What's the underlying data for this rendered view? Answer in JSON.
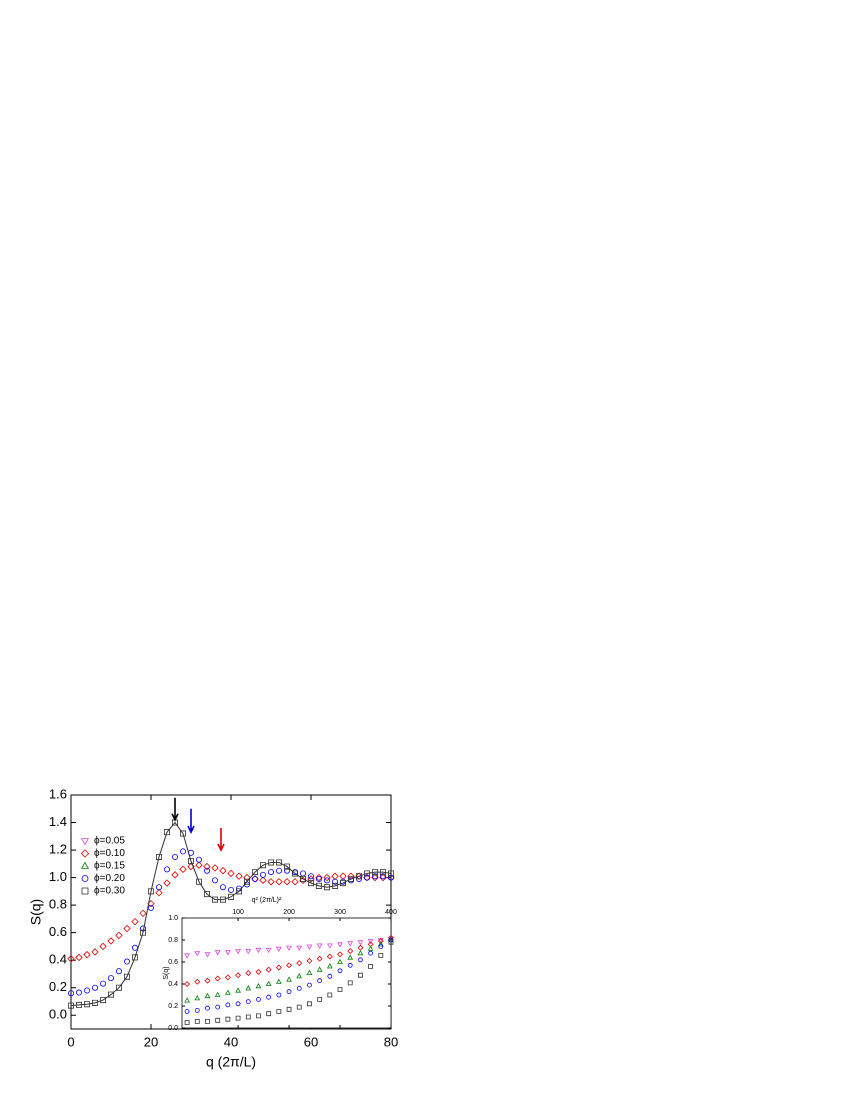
{
  "chart_data": [
    {
      "type": "scatter",
      "xlabel": "q (2π/L)",
      "ylabel": "S(q)",
      "xlim": [
        0,
        80
      ],
      "ylim": [
        -0.1,
        1.6
      ],
      "xticks": [
        0,
        20,
        40,
        60,
        80
      ],
      "yticks": [
        {
          "value": 0,
          "label": "0.0"
        },
        0.2,
        0.4,
        0.6,
        0.8,
        {
          "value": 1,
          "label": "1.0"
        },
        1.2,
        1.4,
        1.6
      ],
      "legend": "upper left",
      "x": [
        0,
        2,
        4,
        6,
        8,
        10,
        12,
        14,
        16,
        18,
        20,
        22,
        24,
        26,
        28,
        30,
        32,
        34,
        36,
        38,
        40,
        42,
        44,
        46,
        48,
        50,
        52,
        54,
        56,
        58,
        60,
        62,
        64,
        66,
        68,
        70,
        72,
        74,
        76,
        78,
        80
      ],
      "series": [
        {
          "color": "#e00000",
          "marker": "diamond",
          "line": false,
          "values": [
            0.41,
            0.42,
            0.44,
            0.46,
            0.5,
            0.54,
            0.58,
            0.63,
            0.68,
            0.74,
            0.81,
            0.89,
            0.96,
            1.02,
            1.06,
            1.08,
            1.09,
            1.08,
            1.07,
            1.05,
            1.03,
            1.01,
            1.0,
            0.99,
            0.98,
            0.97,
            0.97,
            0.97,
            0.97,
            0.98,
            0.99,
            1.0,
            1.0,
            1.01,
            1.01,
            1.01,
            1.01,
            1.0,
            1.0,
            1.0,
            1.0
          ]
        },
        {
          "color": "#0000ff",
          "marker": "circle",
          "line": false,
          "values": [
            0.16,
            0.165,
            0.18,
            0.2,
            0.23,
            0.27,
            0.32,
            0.39,
            0.49,
            0.63,
            0.78,
            0.93,
            1.06,
            1.15,
            1.19,
            1.18,
            1.13,
            1.05,
            0.98,
            0.93,
            0.91,
            0.92,
            0.95,
            0.99,
            1.02,
            1.04,
            1.05,
            1.05,
            1.04,
            1.03,
            1.01,
            0.99,
            0.98,
            0.97,
            0.97,
            0.98,
            0.99,
            1.0,
            1.01,
            1.01,
            1.0
          ]
        },
        {
          "color": "#333333",
          "marker": "square",
          "line": true,
          "values": [
            0.07,
            0.075,
            0.08,
            0.09,
            0.11,
            0.15,
            0.2,
            0.28,
            0.42,
            0.6,
            0.9,
            1.15,
            1.33,
            1.4,
            1.32,
            1.12,
            0.97,
            0.88,
            0.84,
            0.84,
            0.86,
            0.9,
            0.97,
            1.04,
            1.09,
            1.11,
            1.11,
            1.08,
            1.03,
            0.99,
            0.96,
            0.94,
            0.93,
            0.94,
            0.96,
            0.99,
            1.01,
            1.03,
            1.04,
            1.04,
            1.03
          ]
        }
      ],
      "arrows": [
        {
          "x": 26,
          "y_from": 1.58,
          "y_to": 1.42,
          "color": "#000000"
        },
        {
          "x": 30,
          "y_from": 1.5,
          "y_to": 1.33,
          "color": "#0000cc"
        },
        {
          "x": 37.5,
          "y_from": 1.36,
          "y_to": 1.2,
          "color": "#dd0000"
        }
      ]
    },
    {
      "type": "scatter",
      "xlabel": "q² (2π/L)²",
      "ylabel": "S(q)",
      "xlim": [
        -10,
        400
      ],
      "ylim": [
        0,
        1
      ],
      "xticks": [
        100,
        200,
        300,
        400
      ],
      "yticks": [
        {
          "value": 0,
          "label": "0.0"
        },
        0.2,
        0.4,
        0.6,
        0.8,
        {
          "value": 1,
          "label": "1.0"
        }
      ],
      "x": [
        0,
        20,
        40,
        60,
        80,
        100,
        120,
        140,
        160,
        180,
        200,
        220,
        240,
        260,
        280,
        300,
        320,
        340,
        360,
        380,
        400
      ],
      "series": [
        {
          "name": "ϕ=0.05",
          "color": "#e040e0",
          "marker": "down",
          "values": [
            0.66,
            0.68,
            0.67,
            0.69,
            0.69,
            0.7,
            0.7,
            0.71,
            0.71,
            0.72,
            0.73,
            0.73,
            0.74,
            0.75,
            0.75,
            0.76,
            0.77,
            0.78,
            0.79,
            0.8,
            0.81
          ]
        },
        {
          "name": "ϕ=0.10",
          "color": "#e00000",
          "marker": "diamond",
          "values": [
            0.4,
            0.42,
            0.43,
            0.45,
            0.46,
            0.48,
            0.5,
            0.51,
            0.53,
            0.55,
            0.57,
            0.59,
            0.61,
            0.63,
            0.65,
            0.67,
            0.7,
            0.73,
            0.76,
            0.79,
            0.82
          ]
        },
        {
          "name": "ϕ=0.15",
          "color": "#008000",
          "marker": "up",
          "values": [
            0.25,
            0.27,
            0.29,
            0.3,
            0.32,
            0.34,
            0.36,
            0.38,
            0.4,
            0.42,
            0.44,
            0.47,
            0.5,
            0.53,
            0.56,
            0.6,
            0.64,
            0.68,
            0.72,
            0.76,
            0.8
          ]
        },
        {
          "name": "ϕ=0.20",
          "color": "#0000ff",
          "marker": "circle",
          "values": [
            0.15,
            0.16,
            0.18,
            0.19,
            0.21,
            0.22,
            0.24,
            0.26,
            0.28,
            0.3,
            0.33,
            0.36,
            0.39,
            0.43,
            0.47,
            0.52,
            0.57,
            0.62,
            0.68,
            0.74,
            0.8
          ]
        },
        {
          "name": "ϕ=0.30",
          "color": "#333333",
          "marker": "square",
          "values": [
            0.05,
            0.06,
            0.06,
            0.07,
            0.08,
            0.09,
            0.1,
            0.11,
            0.13,
            0.15,
            0.17,
            0.19,
            0.22,
            0.26,
            0.3,
            0.35,
            0.41,
            0.48,
            0.56,
            0.66,
            0.78
          ]
        }
      ]
    }
  ]
}
